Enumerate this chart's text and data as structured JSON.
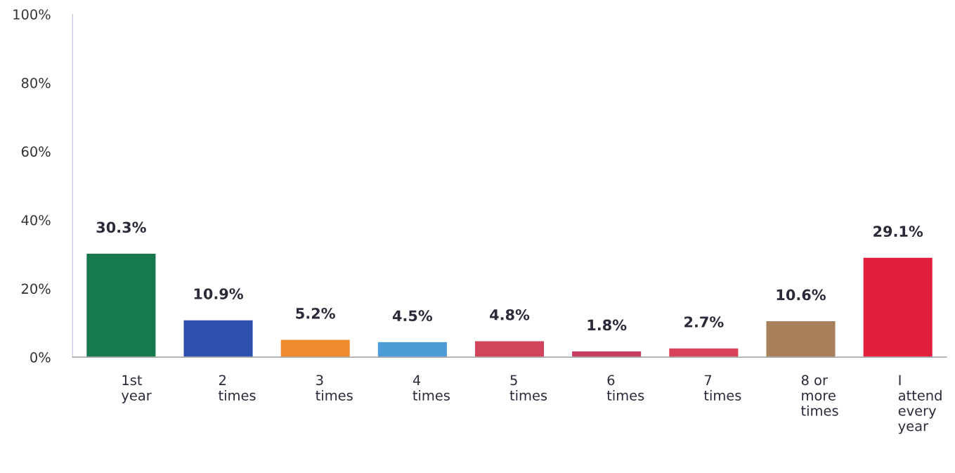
{
  "chart_data": {
    "type": "bar",
    "categories": [
      "1st\nyear",
      "2\ntimes",
      "3\ntimes",
      "4\ntimes",
      "5\ntimes",
      "6\ntimes",
      "7\ntimes",
      "8 or\nmore\ntimes",
      "I\nattend\nevery\nyear"
    ],
    "values": [
      30.3,
      10.9,
      5.2,
      4.5,
      4.8,
      1.8,
      2.7,
      10.6,
      29.1
    ],
    "value_labels": [
      "30.3%",
      "10.9%",
      "5.2%",
      "4.5%",
      "4.8%",
      "1.8%",
      "2.7%",
      "10.6%",
      "29.1%"
    ],
    "colors": [
      "#177a4e",
      "#2f4fae",
      "#f08a2e",
      "#4b9bd6",
      "#d2435c",
      "#c73e5e",
      "#d9425a",
      "#a8805c",
      "#e3203c"
    ],
    "ylim": [
      0,
      100
    ],
    "yticks": [
      {
        "value": 0,
        "label": "0%"
      },
      {
        "value": 20,
        "label": "20%"
      },
      {
        "value": 40,
        "label": "40%"
      },
      {
        "value": 60,
        "label": "60%"
      },
      {
        "value": 80,
        "label": "80%"
      },
      {
        "value": 100,
        "label": "100%"
      }
    ],
    "grid": false,
    "legend": false
  }
}
